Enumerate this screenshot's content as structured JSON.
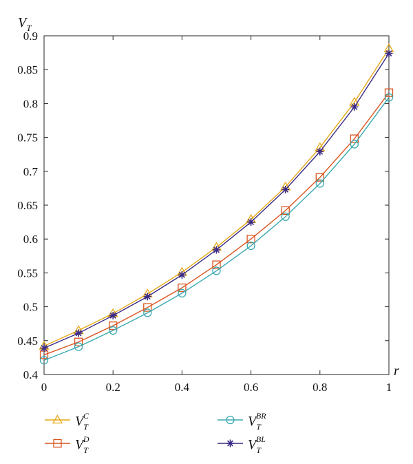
{
  "chart_data": {
    "type": "line",
    "title": "",
    "ylabel": {
      "main": "V",
      "sub": "T"
    },
    "xlabel": "r",
    "xlim": [
      0,
      1
    ],
    "ylim": [
      0.4,
      0.9
    ],
    "grid": false,
    "legend_position": "bottom",
    "x": [
      0,
      0.1,
      0.2,
      0.3,
      0.4,
      0.5,
      0.6,
      0.7,
      0.8,
      0.9,
      1
    ],
    "xticks": [
      "0",
      "0.2",
      "0.4",
      "0.6",
      "0.8",
      "1"
    ],
    "yticks": [
      "0.4",
      "0.45",
      "0.5",
      "0.55",
      "0.6",
      "0.65",
      "0.7",
      "0.75",
      "0.8",
      "0.85",
      "0.9"
    ],
    "series": [
      {
        "name": "C",
        "legend_main": "V",
        "legend_sub": "T",
        "legend_sup": "C",
        "marker": "triangle",
        "color": "#e6a817",
        "values": [
          0.442,
          0.465,
          0.49,
          0.519,
          0.551,
          0.588,
          0.629,
          0.677,
          0.735,
          0.802,
          0.881
        ]
      },
      {
        "name": "D",
        "legend_main": "V",
        "legend_sub": "T",
        "legend_sup": "D",
        "marker": "square",
        "color": "#d9541e",
        "values": [
          0.429,
          0.448,
          0.472,
          0.499,
          0.528,
          0.562,
          0.6,
          0.642,
          0.691,
          0.748,
          0.816
        ]
      },
      {
        "name": "BR",
        "legend_main": "V",
        "legend_sub": "T",
        "legend_sup": "BR",
        "marker": "circle",
        "color": "#3aa9b0",
        "values": [
          0.421,
          0.441,
          0.465,
          0.491,
          0.52,
          0.553,
          0.59,
          0.633,
          0.682,
          0.74,
          0.809
        ]
      },
      {
        "name": "BL",
        "legend_main": "V",
        "legend_sub": "T",
        "legend_sup": "BL",
        "marker": "asterisk",
        "color": "#3b2a86",
        "values": [
          0.439,
          0.461,
          0.487,
          0.515,
          0.547,
          0.584,
          0.625,
          0.673,
          0.729,
          0.795,
          0.874
        ]
      }
    ]
  }
}
